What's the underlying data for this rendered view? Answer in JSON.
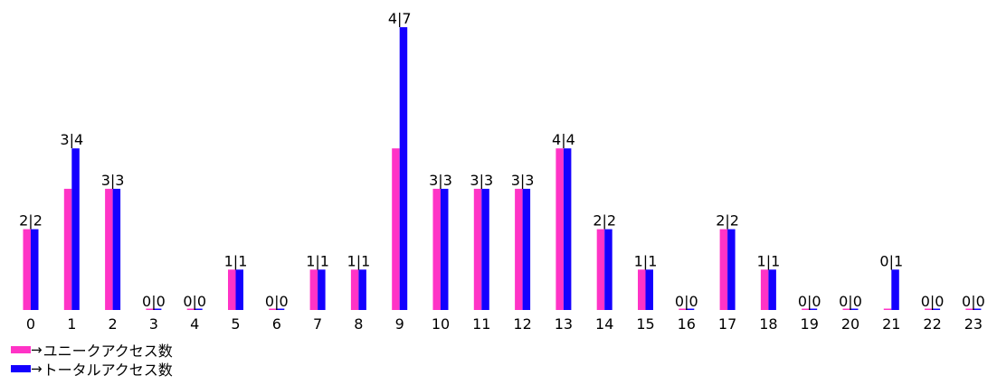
{
  "chart_data": {
    "type": "bar",
    "categories": [
      "0",
      "1",
      "2",
      "3",
      "4",
      "5",
      "6",
      "7",
      "8",
      "9",
      "10",
      "11",
      "12",
      "13",
      "14",
      "15",
      "16",
      "17",
      "18",
      "19",
      "20",
      "21",
      "22",
      "23"
    ],
    "series": [
      {
        "name": "ユニークアクセス数",
        "color": "#ff33c6",
        "values": [
          2,
          3,
          3,
          0,
          0,
          1,
          0,
          1,
          1,
          4,
          3,
          3,
          3,
          4,
          2,
          1,
          0,
          2,
          1,
          0,
          0,
          0,
          0,
          0
        ]
      },
      {
        "name": "トータルアクセス数",
        "color": "#1400ff",
        "values": [
          2,
          4,
          3,
          0,
          0,
          1,
          0,
          1,
          1,
          7,
          3,
          3,
          3,
          4,
          2,
          1,
          0,
          2,
          1,
          0,
          0,
          1,
          0,
          0
        ]
      }
    ],
    "bar_labels": [
      "2|2",
      "3|4",
      "3|3",
      "0|0",
      "0|0",
      "1|1",
      "0|0",
      "1|1",
      "1|1",
      "4|7",
      "3|3",
      "3|3",
      "3|3",
      "4|4",
      "2|2",
      "1|1",
      "0|0",
      "2|2",
      "1|1",
      "0|0",
      "0|0",
      "0|1",
      "0|0",
      "0|0"
    ],
    "ylim": [
      0,
      7
    ],
    "grid": false,
    "legend_position": "bottom-left"
  },
  "legend": {
    "arrow": "→",
    "items": [
      {
        "label": "ユニークアクセス数",
        "color": "#ff33c6"
      },
      {
        "label": "トータルアクセス数",
        "color": "#1400ff"
      }
    ]
  }
}
